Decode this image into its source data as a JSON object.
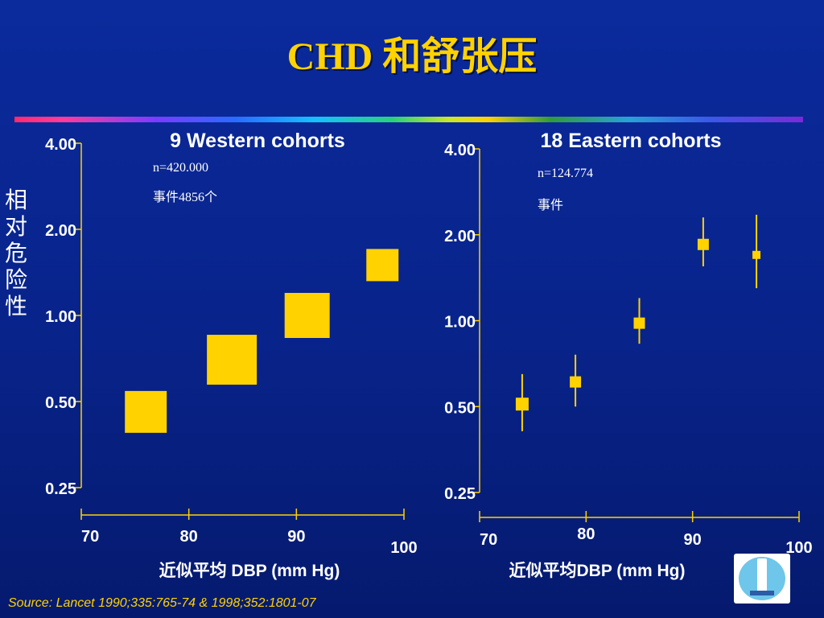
{
  "title": "CHD 和舒张压",
  "source": "Source: Lancet 1990;335:765-74 & 1998;352:1801-07",
  "ylabel": "相对危险性",
  "colors": {
    "background": "#0a2694",
    "title": "#ffd200",
    "marker": "#ffd200",
    "axis": "#ffd200",
    "text": "#ffffff"
  },
  "chart_data": [
    {
      "type": "scatter",
      "title": "9 Western cohorts",
      "notes": [
        "n=420.000",
        "事件4856个"
      ],
      "xlabel": "近似平均 DBP (mm Hg)",
      "ylabel": "相对危险性",
      "yscale": "log",
      "ylim": [
        0.25,
        4.0
      ],
      "xlim": [
        70,
        100
      ],
      "y_ticks": [
        "4.00",
        "2.00",
        "1.00",
        "0.50",
        "0.25"
      ],
      "x_ticks": [
        "70",
        "80",
        "90",
        "100"
      ],
      "points": [
        {
          "x": 76,
          "y": 0.46
        },
        {
          "x": 84,
          "y": 0.7
        },
        {
          "x": 91,
          "y": 1.0
        },
        {
          "x": 98,
          "y": 1.5
        }
      ]
    },
    {
      "type": "scatter",
      "title": "18 Eastern cohorts",
      "notes": [
        "n=124.774",
        "事件"
      ],
      "xlabel": "近似平均DBP (mm Hg)",
      "ylim": [
        0.25,
        4.0
      ],
      "xlim": [
        70,
        100
      ],
      "yscale": "log",
      "y_ticks": [
        "4.00",
        "2.00",
        "1.00",
        "0.50",
        "0.25"
      ],
      "x_ticks": [
        "70",
        "80",
        "90",
        "100"
      ],
      "points": [
        {
          "x": 74,
          "y": 0.51,
          "ci": [
            0.41,
            0.65
          ]
        },
        {
          "x": 79,
          "y": 0.61,
          "ci": [
            0.5,
            0.76
          ]
        },
        {
          "x": 85,
          "y": 0.98,
          "ci": [
            0.83,
            1.2
          ]
        },
        {
          "x": 91,
          "y": 1.85,
          "ci": [
            1.55,
            2.3
          ]
        },
        {
          "x": 96,
          "y": 1.7,
          "ci": [
            1.3,
            2.35
          ]
        }
      ]
    }
  ]
}
